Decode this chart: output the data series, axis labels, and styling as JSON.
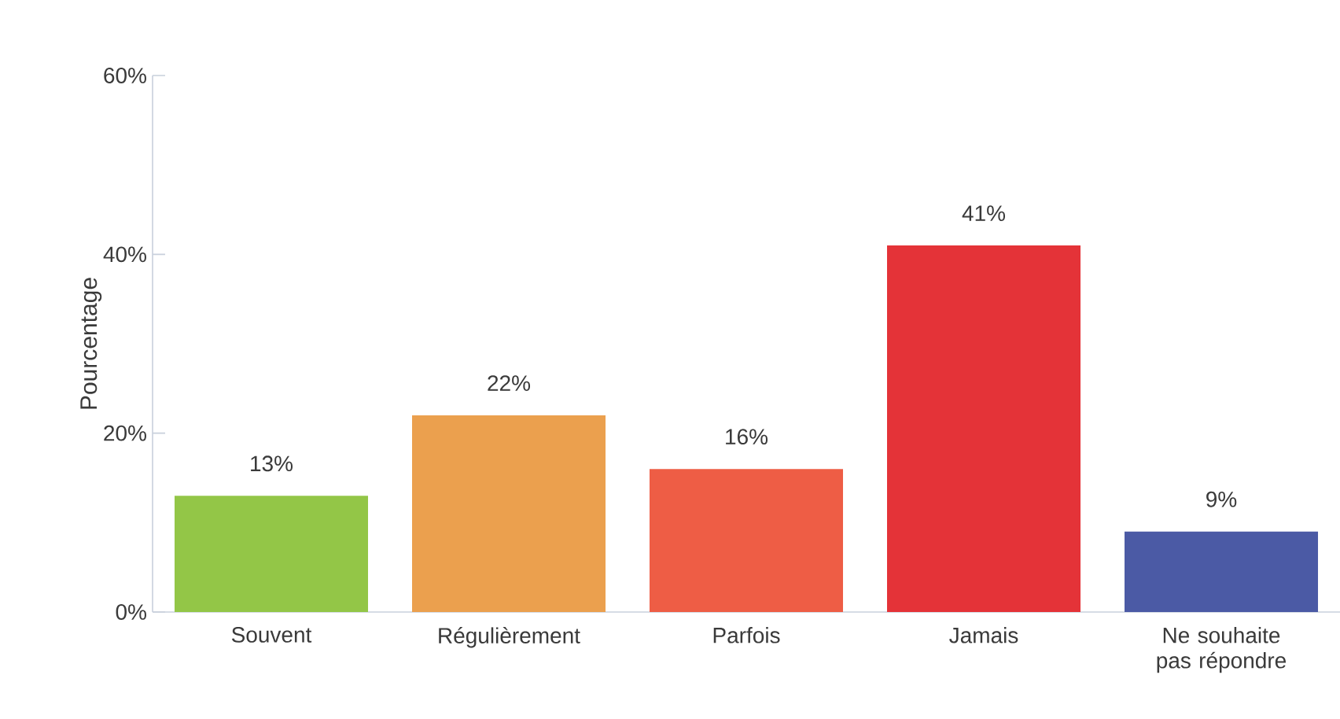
{
  "chart_data": {
    "type": "bar",
    "ylabel": "Pourcentage",
    "categories": [
      "Souvent",
      "Régulièrement",
      "Parfois",
      "Jamais",
      "Ne souhaite pas répondre"
    ],
    "values": [
      13,
      22,
      16,
      41,
      9
    ],
    "colors": [
      "#93c647",
      "#eba04e",
      "#ee5d45",
      "#e43338",
      "#4b5aa5"
    ],
    "ylim": [
      0,
      60
    ],
    "yticks": [
      {
        "value": 0,
        "label": "0%"
      },
      {
        "value": 20,
        "label": "20%"
      },
      {
        "value": 40,
        "label": "40%"
      },
      {
        "value": 60,
        "label": "60%"
      }
    ],
    "value_labels": [
      "13%",
      "22%",
      "16%",
      "41%",
      "9%"
    ],
    "grid": false
  }
}
